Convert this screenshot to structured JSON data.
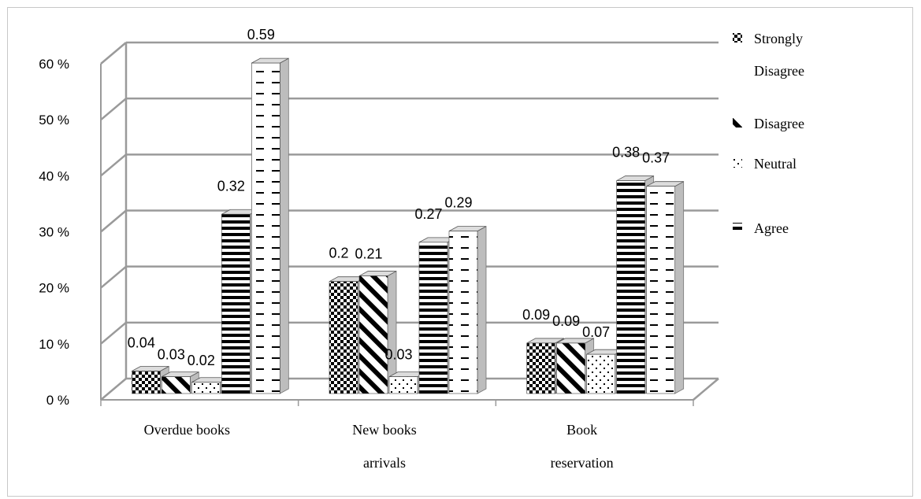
{
  "chart_data": {
    "type": "bar",
    "title": "",
    "xlabel": "",
    "ylabel": "",
    "categories": [
      [
        "Overdue books"
      ],
      [
        "New books",
        "arrivals"
      ],
      [
        "Book",
        "reservation"
      ]
    ],
    "series": [
      {
        "name": [
          "Strongly",
          "Disagree"
        ],
        "values": [
          0.04,
          0.2,
          0.09
        ],
        "labels": [
          "0.04",
          "0.2",
          "0.09"
        ]
      },
      {
        "name": [
          "Disagree"
        ],
        "values": [
          0.03,
          0.21,
          0.09
        ],
        "labels": [
          "0.03",
          "0.21",
          "0.09"
        ]
      },
      {
        "name": [
          "Neutral"
        ],
        "values": [
          0.02,
          0.03,
          0.07
        ],
        "labels": [
          "0.02",
          "0.03",
          "0.07"
        ]
      },
      {
        "name": [
          "Agree"
        ],
        "values": [
          0.32,
          0.27,
          0.38
        ],
        "labels": [
          "0.32",
          "0.27",
          "0.38"
        ]
      },
      {
        "name": [],
        "values": [
          0.59,
          0.29,
          0.37
        ],
        "labels": [
          "0.59",
          "0.29",
          "0.37"
        ]
      }
    ],
    "yticks": [
      "0 %",
      "10 %",
      "20 %",
      "30 %",
      "40 %",
      "50 %",
      "60 %"
    ],
    "ylim": [
      0,
      0.6
    ],
    "grid": true,
    "legend": "right",
    "three_d": true,
    "colors": {
      "grid": "#9a9a9a",
      "bar": "#000000",
      "side": "#bdbdbd",
      "top": "#dcdcdc"
    }
  }
}
